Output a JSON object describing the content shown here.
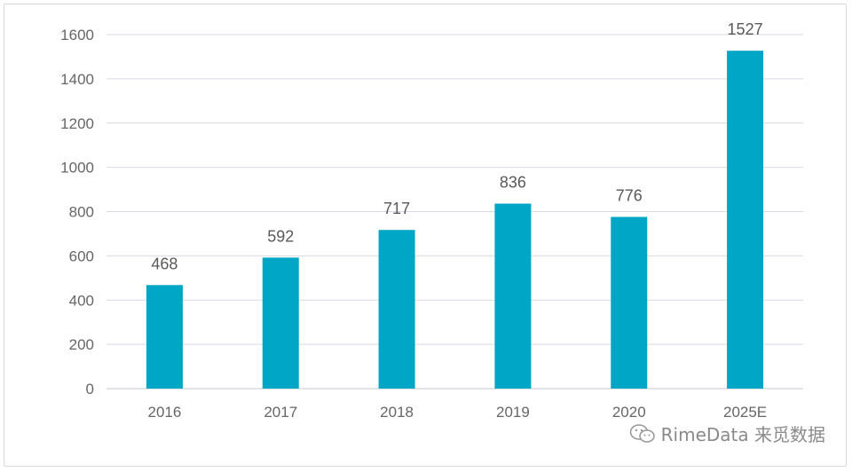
{
  "chart_data": {
    "type": "bar",
    "categories": [
      "2016",
      "2017",
      "2018",
      "2019",
      "2020",
      "2025E"
    ],
    "values": [
      468,
      592,
      717,
      836,
      776,
      1527
    ],
    "data_labels": [
      "468",
      "592",
      "717",
      "836",
      "776",
      "1527"
    ],
    "ylim": [
      0,
      1600
    ],
    "yticks": [
      "0",
      "200",
      "400",
      "600",
      "800",
      "1000",
      "1200",
      "1400",
      "1600"
    ],
    "grid": true,
    "bar_color": "#00a6c6"
  },
  "watermark": {
    "text": "RimeData 来觅数据",
    "icon": "wechat-icon"
  }
}
